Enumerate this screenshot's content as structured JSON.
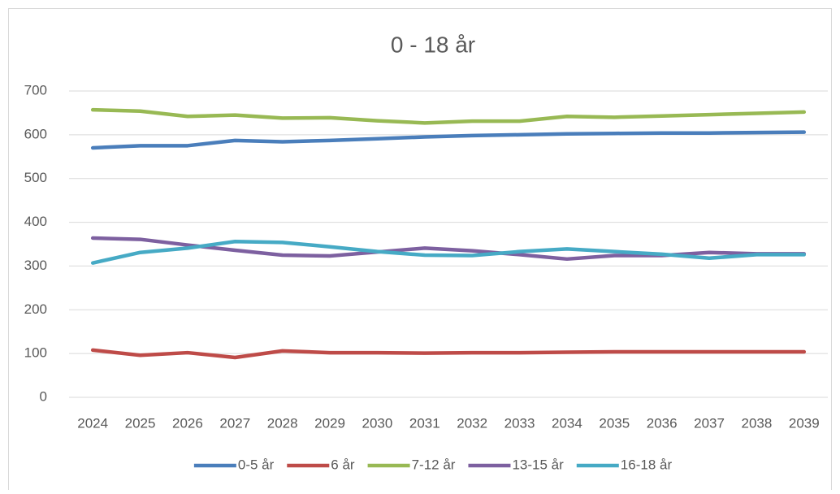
{
  "chart_data": {
    "type": "line",
    "title": "0 - 18 år",
    "categories": [
      "2024",
      "2025",
      "2026",
      "2027",
      "2028",
      "2029",
      "2030",
      "2031",
      "2032",
      "2033",
      "2034",
      "2035",
      "2036",
      "2037",
      "2038",
      "2039"
    ],
    "series": [
      {
        "name": "0-5 år",
        "color": "#4a7ebb",
        "values": [
          570,
          575,
          575,
          587,
          584,
          587,
          591,
          595,
          598,
          600,
          602,
          603,
          604,
          604,
          605,
          606
        ]
      },
      {
        "name": "6 år",
        "color": "#be4b48",
        "values": [
          108,
          96,
          102,
          91,
          106,
          102,
          102,
          101,
          102,
          102,
          103,
          104,
          104,
          104,
          104,
          104
        ]
      },
      {
        "name": "7-12 år",
        "color": "#98b954",
        "values": [
          657,
          654,
          642,
          645,
          638,
          639,
          632,
          627,
          631,
          631,
          642,
          640,
          643,
          646,
          649,
          652
        ]
      },
      {
        "name": "13-15 år",
        "color": "#7d60a0",
        "values": [
          364,
          361,
          348,
          336,
          325,
          323,
          332,
          341,
          335,
          326,
          316,
          324,
          324,
          331,
          328,
          328
        ]
      },
      {
        "name": "16-18 år",
        "color": "#46aac5",
        "values": [
          307,
          331,
          341,
          356,
          354,
          344,
          333,
          325,
          324,
          333,
          339,
          333,
          327,
          318,
          326,
          326
        ]
      }
    ],
    "ylim": [
      0,
      700
    ],
    "yticks": [
      0,
      100,
      200,
      300,
      400,
      500,
      600,
      700
    ],
    "grid": true,
    "legend": "bottom"
  }
}
